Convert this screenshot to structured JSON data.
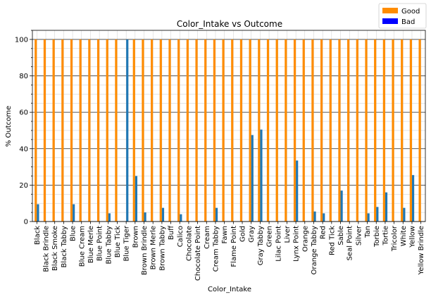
{
  "chart_data": {
    "type": "bar",
    "stacked": false,
    "title": "Color_Intake vs Outcome",
    "xlabel": "Color_Intake",
    "ylabel": "% Outcome",
    "ylim": [
      0,
      105
    ],
    "yticks": [
      0,
      20,
      40,
      60,
      80,
      100
    ],
    "grid": true,
    "legend_position": "top-right",
    "categories": [
      "Black",
      "Black Brindle",
      "Black Smoke",
      "Black Tabby",
      "Blue",
      "Blue Cream",
      "Blue Merle",
      "Blue Point",
      "Blue Tabby",
      "Blue Tick",
      "Blue Tiger",
      "Brown",
      "Brown Brindle",
      "Brown Merle",
      "Brown Tabby",
      "Buff",
      "Calico",
      "Chocolate",
      "Chocolate Point",
      "Cream",
      "Cream Tabby",
      "Fawn",
      "Flame Point",
      "Gold",
      "Gray",
      "Gray Tabby",
      "Green",
      "Lilac Point",
      "Liver",
      "Lynx Point",
      "Orange",
      "Orange Tabby",
      "Red",
      "Red Tick",
      "Sable",
      "Seal Point",
      "Silver",
      "Tan",
      "Torbie",
      "Tortie",
      "Tricolor",
      "White",
      "Yellow",
      "Yellow Brindle"
    ],
    "series": [
      {
        "name": "Good",
        "color": "#ff8c00",
        "values": [
          100,
          100,
          100,
          100,
          100,
          100,
          100,
          100,
          100,
          100,
          0,
          100,
          100,
          100,
          100,
          100,
          100,
          100,
          100,
          100,
          100,
          100,
          100,
          100,
          100,
          100,
          100,
          100,
          100,
          100,
          100,
          100,
          100,
          100,
          100,
          100,
          100,
          100,
          100,
          100,
          100,
          100,
          100,
          100
        ]
      },
      {
        "name": "Bad",
        "color": "#0000ff",
        "draw_color": "#1f77b4",
        "values": [
          9.5,
          0,
          0,
          0,
          9.5,
          0,
          0,
          0,
          4.5,
          0,
          100,
          25,
          5,
          0,
          7.5,
          0,
          4,
          0,
          0,
          0,
          7.5,
          0,
          0,
          0,
          47.5,
          50.5,
          0,
          0,
          0,
          33.5,
          0,
          5.5,
          4.5,
          0,
          17,
          0,
          0,
          4.5,
          8,
          16,
          0,
          7.5,
          25.5,
          0
        ]
      }
    ]
  }
}
